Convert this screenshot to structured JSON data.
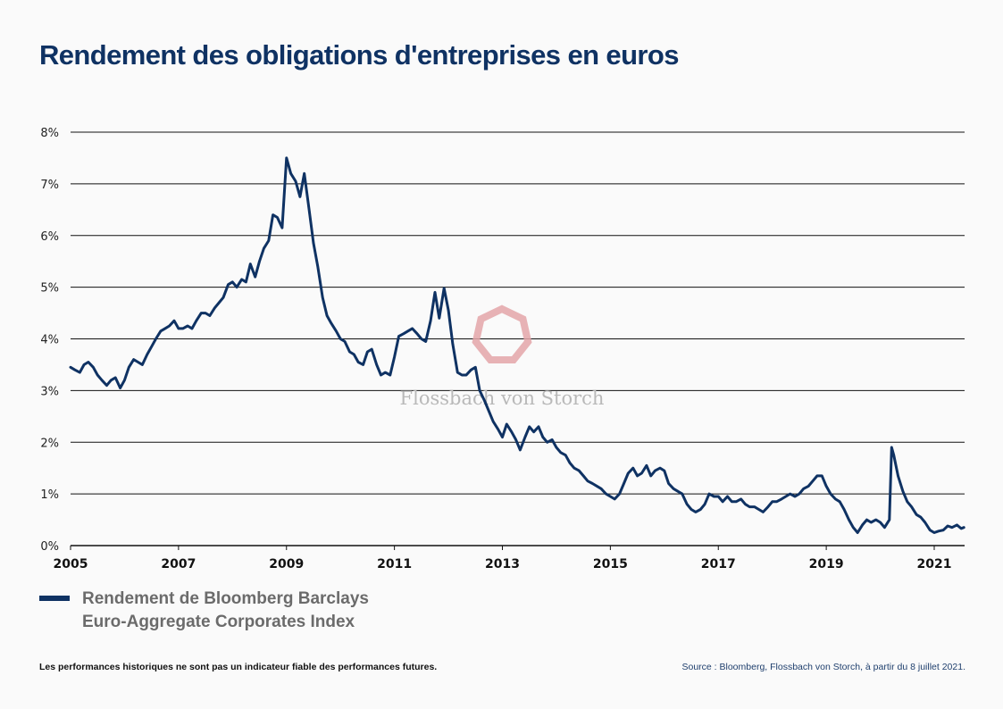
{
  "chart_data": {
    "type": "line",
    "title": "Rendement des obligations d'entreprises en euros",
    "xlabel": "",
    "ylabel": "",
    "xlim": [
      2005.0,
      2021.55
    ],
    "ylim": [
      0,
      8
    ],
    "grid": true,
    "y_ticks": [
      0,
      1,
      2,
      3,
      4,
      5,
      6,
      7,
      8
    ],
    "y_tick_labels": [
      "0%",
      "1%",
      "2%",
      "3%",
      "4%",
      "5%",
      "6%",
      "7%",
      "8%"
    ],
    "x_ticks": [
      2005,
      2007,
      2009,
      2011,
      2013,
      2015,
      2017,
      2019,
      2021
    ],
    "x_tick_labels": [
      "2005",
      "2007",
      "2009",
      "2011",
      "2013",
      "2015",
      "2017",
      "2019",
      "2021"
    ],
    "legend_position": "bottom-left",
    "series": [
      {
        "name": "Rendement de Bloomberg Barclays Euro-Aggregate Corporates Index",
        "color": "#0f3263",
        "x": [
          2005.0,
          2005.08,
          2005.17,
          2005.25,
          2005.33,
          2005.42,
          2005.5,
          2005.58,
          2005.67,
          2005.75,
          2005.83,
          2005.92,
          2006.0,
          2006.08,
          2006.17,
          2006.25,
          2006.33,
          2006.42,
          2006.5,
          2006.58,
          2006.67,
          2006.75,
          2006.83,
          2006.92,
          2007.0,
          2007.08,
          2007.17,
          2007.25,
          2007.33,
          2007.42,
          2007.5,
          2007.58,
          2007.67,
          2007.75,
          2007.83,
          2007.92,
          2008.0,
          2008.08,
          2008.17,
          2008.25,
          2008.33,
          2008.42,
          2008.5,
          2008.58,
          2008.67,
          2008.75,
          2008.83,
          2008.92,
          2009.0,
          2009.08,
          2009.17,
          2009.25,
          2009.33,
          2009.42,
          2009.5,
          2009.58,
          2009.67,
          2009.75,
          2009.83,
          2009.92,
          2010.0,
          2010.08,
          2010.17,
          2010.25,
          2010.33,
          2010.42,
          2010.5,
          2010.58,
          2010.67,
          2010.75,
          2010.83,
          2010.92,
          2011.0,
          2011.08,
          2011.17,
          2011.25,
          2011.33,
          2011.42,
          2011.5,
          2011.58,
          2011.67,
          2011.75,
          2011.83,
          2011.92,
          2012.0,
          2012.08,
          2012.17,
          2012.25,
          2012.33,
          2012.42,
          2012.5,
          2012.58,
          2012.67,
          2012.75,
          2012.83,
          2012.92,
          2013.0,
          2013.08,
          2013.17,
          2013.25,
          2013.33,
          2013.42,
          2013.5,
          2013.58,
          2013.67,
          2013.75,
          2013.83,
          2013.92,
          2014.0,
          2014.08,
          2014.17,
          2014.25,
          2014.33,
          2014.42,
          2014.5,
          2014.58,
          2014.67,
          2014.75,
          2014.83,
          2014.92,
          2015.0,
          2015.08,
          2015.17,
          2015.25,
          2015.33,
          2015.42,
          2015.5,
          2015.58,
          2015.67,
          2015.75,
          2015.83,
          2015.92,
          2016.0,
          2016.08,
          2016.17,
          2016.25,
          2016.33,
          2016.42,
          2016.5,
          2016.58,
          2016.67,
          2016.75,
          2016.83,
          2016.92,
          2017.0,
          2017.08,
          2017.17,
          2017.25,
          2017.33,
          2017.42,
          2017.5,
          2017.58,
          2017.67,
          2017.75,
          2017.83,
          2017.92,
          2018.0,
          2018.08,
          2018.17,
          2018.25,
          2018.33,
          2018.42,
          2018.5,
          2018.58,
          2018.67,
          2018.75,
          2018.83,
          2018.92,
          2019.0,
          2019.08,
          2019.17,
          2019.25,
          2019.33,
          2019.42,
          2019.5,
          2019.58,
          2019.67,
          2019.75,
          2019.83,
          2019.92,
          2020.0,
          2020.08,
          2020.17,
          2020.21,
          2020.25,
          2020.33,
          2020.42,
          2020.5,
          2020.58,
          2020.67,
          2020.75,
          2020.83,
          2020.92,
          2021.0,
          2021.08,
          2021.17,
          2021.25,
          2021.33,
          2021.42,
          2021.5,
          2021.55
        ],
        "values": [
          3.45,
          3.4,
          3.35,
          3.5,
          3.55,
          3.45,
          3.3,
          3.2,
          3.1,
          3.2,
          3.25,
          3.05,
          3.2,
          3.45,
          3.6,
          3.55,
          3.5,
          3.7,
          3.85,
          4.0,
          4.15,
          4.2,
          4.25,
          4.35,
          4.2,
          4.2,
          4.25,
          4.2,
          4.35,
          4.5,
          4.5,
          4.45,
          4.6,
          4.7,
          4.8,
          5.05,
          5.1,
          5.0,
          5.15,
          5.1,
          5.45,
          5.2,
          5.5,
          5.75,
          5.9,
          6.4,
          6.35,
          6.15,
          7.5,
          7.2,
          7.05,
          6.75,
          7.2,
          6.5,
          5.85,
          5.4,
          4.8,
          4.45,
          4.3,
          4.15,
          4.0,
          3.95,
          3.75,
          3.7,
          3.55,
          3.5,
          3.75,
          3.8,
          3.5,
          3.3,
          3.35,
          3.3,
          3.65,
          4.05,
          4.1,
          4.15,
          4.2,
          4.1,
          4.0,
          3.95,
          4.35,
          4.9,
          4.4,
          4.98,
          4.55,
          3.9,
          3.35,
          3.3,
          3.3,
          3.4,
          3.45,
          3.0,
          2.8,
          2.6,
          2.4,
          2.25,
          2.1,
          2.35,
          2.2,
          2.05,
          1.85,
          2.1,
          2.3,
          2.2,
          2.3,
          2.1,
          2.0,
          2.05,
          1.9,
          1.8,
          1.75,
          1.6,
          1.5,
          1.45,
          1.35,
          1.25,
          1.2,
          1.15,
          1.1,
          1.0,
          0.95,
          0.9,
          1.0,
          1.2,
          1.4,
          1.5,
          1.35,
          1.4,
          1.55,
          1.35,
          1.45,
          1.5,
          1.45,
          1.2,
          1.1,
          1.05,
          1.0,
          0.8,
          0.7,
          0.65,
          0.7,
          0.8,
          1.0,
          0.95,
          0.95,
          0.85,
          0.95,
          0.85,
          0.85,
          0.9,
          0.8,
          0.75,
          0.75,
          0.7,
          0.65,
          0.75,
          0.85,
          0.85,
          0.9,
          0.95,
          1.0,
          0.95,
          1.0,
          1.1,
          1.15,
          1.25,
          1.35,
          1.35,
          1.15,
          1.0,
          0.9,
          0.85,
          0.7,
          0.5,
          0.35,
          0.25,
          0.4,
          0.5,
          0.45,
          0.5,
          0.45,
          0.35,
          0.5,
          1.9,
          1.75,
          1.35,
          1.05,
          0.85,
          0.75,
          0.6,
          0.55,
          0.45,
          0.3,
          0.25,
          0.28,
          0.3,
          0.38,
          0.35,
          0.4,
          0.33,
          0.35
        ]
      }
    ]
  },
  "title": "Rendement des obligations d'entreprises en euros",
  "watermark": {
    "text": "Flossbach von Storch",
    "logo_color": "#e3a4a8"
  },
  "legend": {
    "line1": "Rendement de Bloomberg Barclays",
    "line2": "Euro-Aggregate Corporates Index"
  },
  "footer": {
    "disclaimer": "Les performances historiques ne sont pas un indicateur fiable des performances futures.",
    "source": "Source : Bloomberg, Flossbach von Storch, à partir du 8 juillet 2021."
  }
}
